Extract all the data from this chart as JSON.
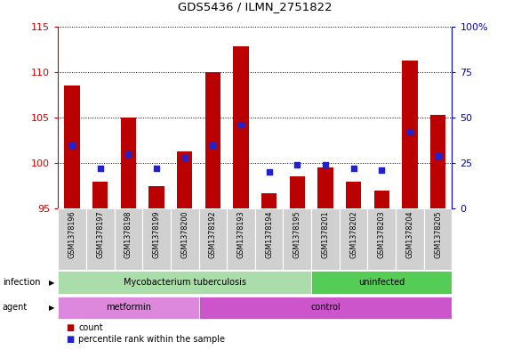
{
  "title": "GDS5436 / ILMN_2751822",
  "samples": [
    "GSM1378196",
    "GSM1378197",
    "GSM1378198",
    "GSM1378199",
    "GSM1378200",
    "GSM1378192",
    "GSM1378193",
    "GSM1378194",
    "GSM1378195",
    "GSM1378201",
    "GSM1378202",
    "GSM1378203",
    "GSM1378204",
    "GSM1378205"
  ],
  "counts": [
    108.5,
    98.0,
    105.0,
    97.5,
    101.3,
    110.0,
    112.8,
    96.7,
    98.5,
    99.5,
    98.0,
    97.0,
    111.3,
    105.3
  ],
  "percentiles": [
    35,
    22,
    30,
    22,
    28,
    35,
    46,
    20,
    24,
    24,
    22,
    21,
    42,
    29
  ],
  "ylim_left": [
    95,
    115
  ],
  "ylim_right": [
    0,
    100
  ],
  "yticks_left": [
    95,
    100,
    105,
    110,
    115
  ],
  "yticks_right": [
    0,
    25,
    50,
    75,
    100
  ],
  "bar_color": "#bb0000",
  "dot_color": "#2222cc",
  "bar_width": 0.55,
  "infection_groups": [
    {
      "label": "Mycobacterium tuberculosis",
      "start": 0,
      "end": 9,
      "color": "#aaddaa"
    },
    {
      "label": "uninfected",
      "start": 9,
      "end": 14,
      "color": "#55cc55"
    }
  ],
  "agent_groups": [
    {
      "label": "metformin",
      "start": 0,
      "end": 5,
      "color": "#dd88dd"
    },
    {
      "label": "control",
      "start": 5,
      "end": 14,
      "color": "#cc55cc"
    }
  ],
  "infection_label": "infection",
  "agent_label": "agent",
  "legend_count": "count",
  "legend_percentile": "percentile rank within the sample",
  "left_axis_color": "#cc0000",
  "right_axis_color": "#0000cc",
  "grid_color": "black",
  "tick_label_bg": "#d0d0d0"
}
